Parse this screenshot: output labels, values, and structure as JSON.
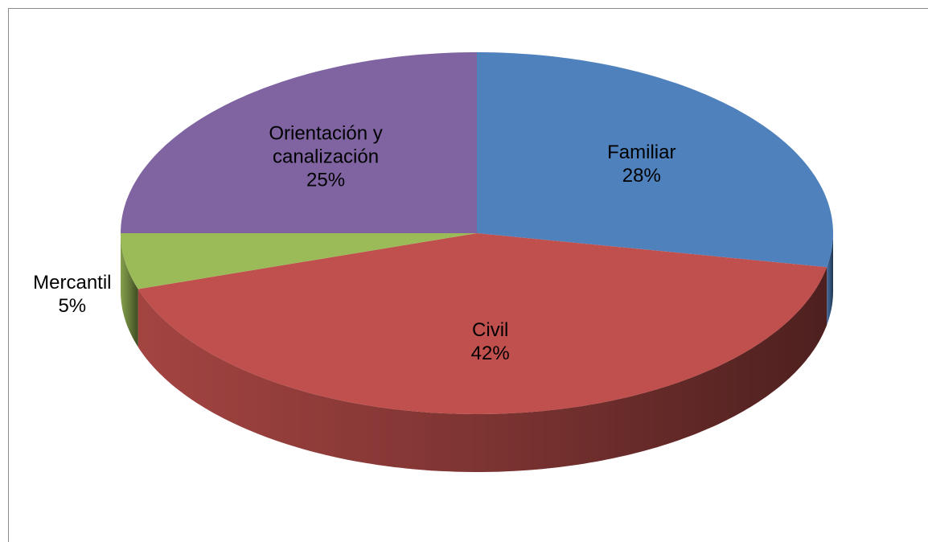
{
  "chart_data": {
    "type": "pie",
    "categories": [
      "Familiar",
      "Civil",
      "Mercantil",
      "Orientación y canalización"
    ],
    "values": [
      28,
      42,
      5,
      25
    ],
    "value_labels": [
      "28%",
      "42%",
      "5%",
      "25%"
    ],
    "colors": [
      "#4f81bd",
      "#c0504d",
      "#9bbb59",
      "#8064a2"
    ],
    "three_d": true
  }
}
